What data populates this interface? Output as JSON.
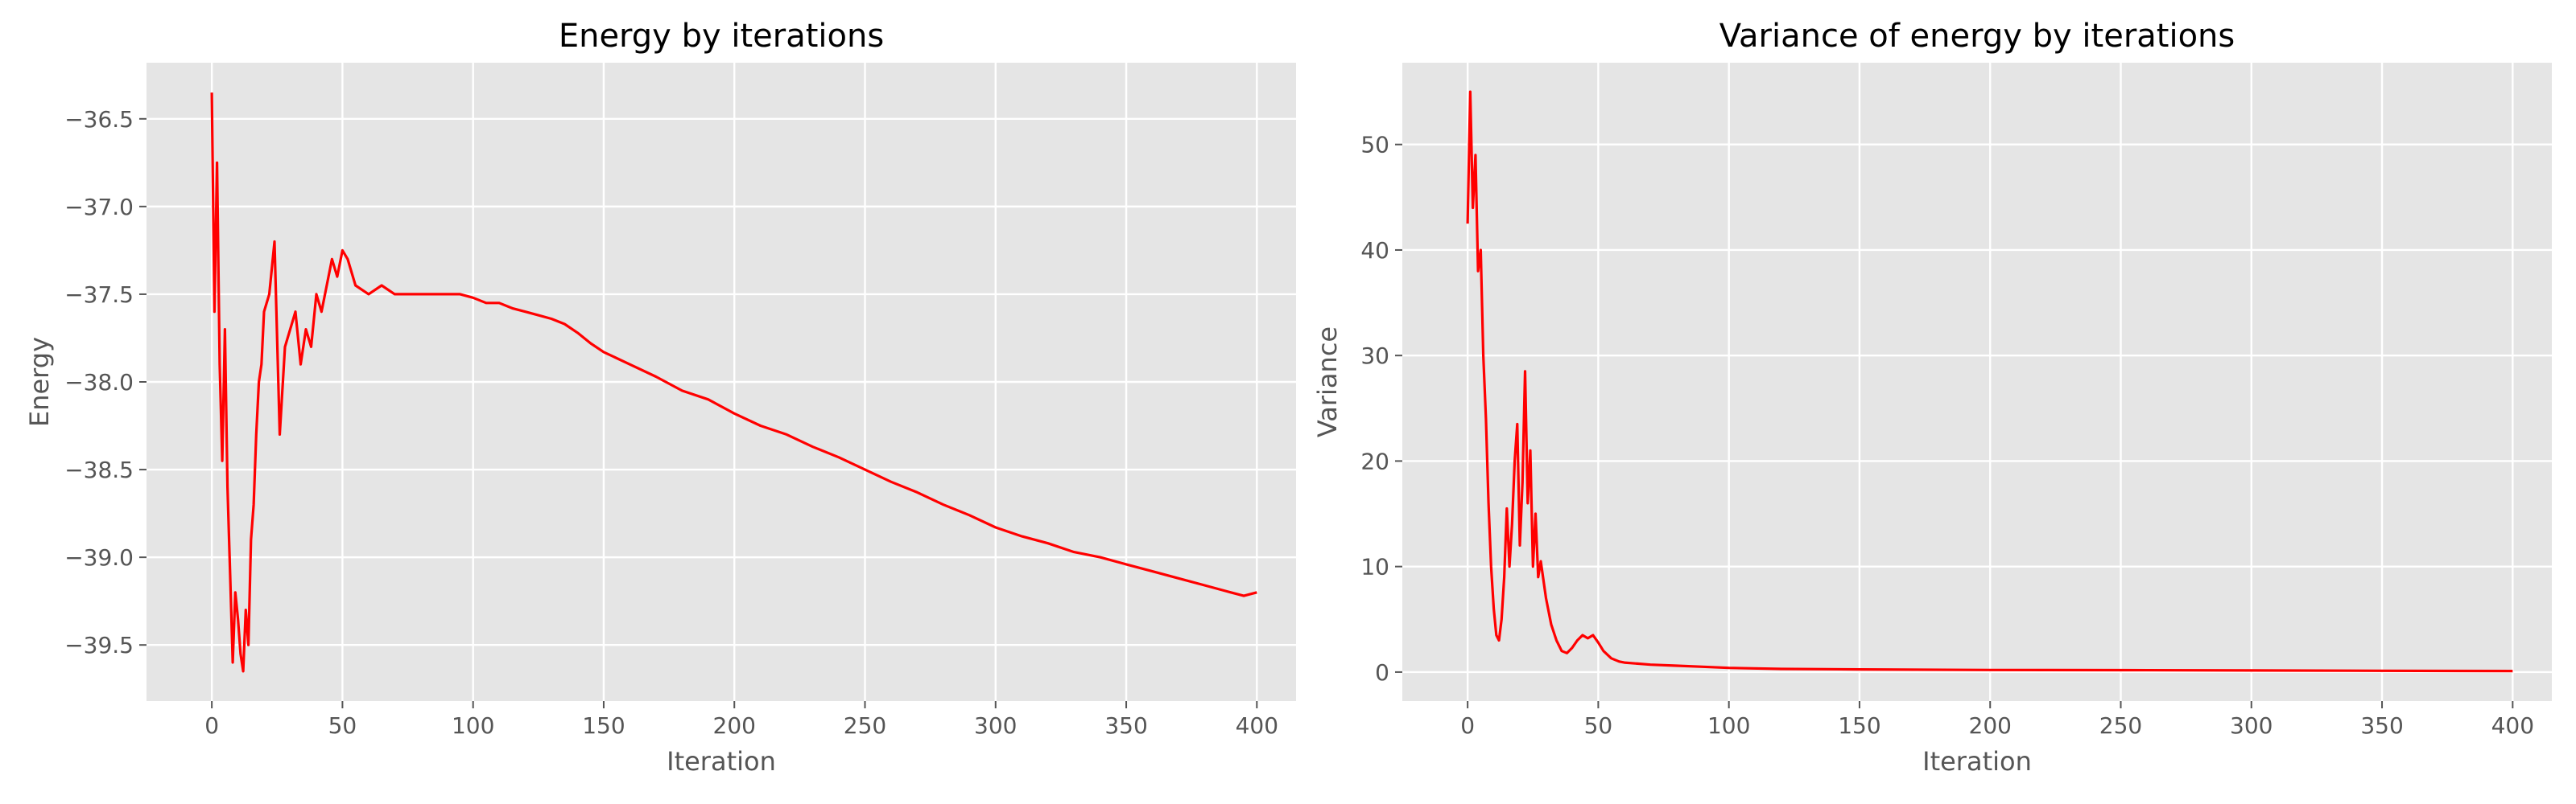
{
  "chart_data": [
    {
      "type": "line",
      "title": "Energy by iterations",
      "xlabel": "Iteration",
      "ylabel": "Energy",
      "xlim": [
        -25,
        415
      ],
      "ylim": [
        -39.82,
        -36.18
      ],
      "xticks": [
        0,
        50,
        100,
        150,
        200,
        250,
        300,
        350,
        400
      ],
      "yticks": [
        -39.5,
        -39.0,
        -38.5,
        -38.0,
        -37.5,
        -37.0,
        -36.5
      ],
      "xtick_labels": [
        "0",
        "50",
        "100",
        "150",
        "200",
        "250",
        "300",
        "350",
        "400"
      ],
      "ytick_labels": [
        "−39.5",
        "−39.0",
        "−38.5",
        "−38.0",
        "−37.5",
        "−37.0",
        "−36.5"
      ],
      "grid": true,
      "color": "#ff0000",
      "series": [
        {
          "x": [
            0,
            1,
            2,
            3,
            4,
            5,
            6,
            7,
            8,
            9,
            10,
            11,
            12,
            13,
            14,
            15,
            16,
            17,
            18,
            19,
            20,
            22,
            24,
            26,
            28,
            30,
            32,
            34,
            36,
            38,
            40,
            42,
            44,
            46,
            48,
            50,
            52,
            55,
            60,
            65,
            70,
            75,
            80,
            85,
            90,
            95,
            100,
            105,
            110,
            115,
            120,
            125,
            130,
            135,
            140,
            145,
            150,
            160,
            170,
            180,
            190,
            200,
            210,
            220,
            230,
            240,
            250,
            260,
            270,
            280,
            290,
            300,
            310,
            320,
            330,
            340,
            350,
            360,
            370,
            380,
            390,
            395,
            400
          ],
          "y": [
            -36.35,
            -37.6,
            -36.75,
            -37.9,
            -38.45,
            -37.7,
            -38.6,
            -39.1,
            -39.6,
            -39.2,
            -39.35,
            -39.55,
            -39.65,
            -39.3,
            -39.5,
            -38.9,
            -38.7,
            -38.3,
            -38.0,
            -37.9,
            -37.6,
            -37.5,
            -37.2,
            -38.3,
            -37.8,
            -37.7,
            -37.6,
            -37.9,
            -37.7,
            -37.8,
            -37.5,
            -37.6,
            -37.45,
            -37.3,
            -37.4,
            -37.25,
            -37.3,
            -37.45,
            -37.5,
            -37.45,
            -37.5,
            -37.5,
            -37.5,
            -37.5,
            -37.5,
            -37.5,
            -37.52,
            -37.55,
            -37.55,
            -37.58,
            -37.6,
            -37.62,
            -37.64,
            -37.67,
            -37.72,
            -37.78,
            -37.83,
            -37.9,
            -37.97,
            -38.05,
            -38.1,
            -38.18,
            -38.25,
            -38.3,
            -38.37,
            -38.43,
            -38.5,
            -38.57,
            -38.63,
            -38.7,
            -38.76,
            -38.83,
            -38.88,
            -38.92,
            -38.97,
            -39.0,
            -39.04,
            -39.08,
            -39.12,
            -39.16,
            -39.2,
            -39.22,
            -39.2
          ]
        }
      ]
    },
    {
      "type": "line",
      "title": "Variance of energy by iterations",
      "xlabel": "Iteration",
      "ylabel": "Variance",
      "xlim": [
        -25,
        415
      ],
      "ylim": [
        -2.75,
        57.75
      ],
      "xticks": [
        0,
        50,
        100,
        150,
        200,
        250,
        300,
        350,
        400
      ],
      "yticks": [
        0,
        10,
        20,
        30,
        40,
        50
      ],
      "xtick_labels": [
        "0",
        "50",
        "100",
        "150",
        "200",
        "250",
        "300",
        "350",
        "400"
      ],
      "ytick_labels": [
        "0",
        "10",
        "20",
        "30",
        "40",
        "50"
      ],
      "grid": true,
      "color": "#ff0000",
      "series": [
        {
          "x": [
            0,
            1,
            2,
            3,
            4,
            5,
            6,
            7,
            8,
            9,
            10,
            11,
            12,
            13,
            14,
            15,
            16,
            17,
            18,
            19,
            20,
            21,
            22,
            23,
            24,
            25,
            26,
            27,
            28,
            30,
            32,
            34,
            36,
            38,
            40,
            42,
            44,
            46,
            48,
            50,
            52,
            55,
            58,
            60,
            65,
            70,
            80,
            90,
            100,
            120,
            150,
            200,
            250,
            300,
            350,
            400
          ],
          "y": [
            42.5,
            55.0,
            44.0,
            49.0,
            38.0,
            40.0,
            30.0,
            24.0,
            16.0,
            10.0,
            6.0,
            3.5,
            3.0,
            5.0,
            9.0,
            15.5,
            10.0,
            14.0,
            20.0,
            23.5,
            12.0,
            18.0,
            28.5,
            16.0,
            21.0,
            10.0,
            15.0,
            9.0,
            10.5,
            7.0,
            4.5,
            3.0,
            2.0,
            1.8,
            2.3,
            3.0,
            3.5,
            3.2,
            3.5,
            2.8,
            2.0,
            1.3,
            1.0,
            0.9,
            0.8,
            0.7,
            0.6,
            0.5,
            0.4,
            0.3,
            0.25,
            0.2,
            0.18,
            0.15,
            0.12,
            0.1
          ]
        }
      ]
    }
  ]
}
